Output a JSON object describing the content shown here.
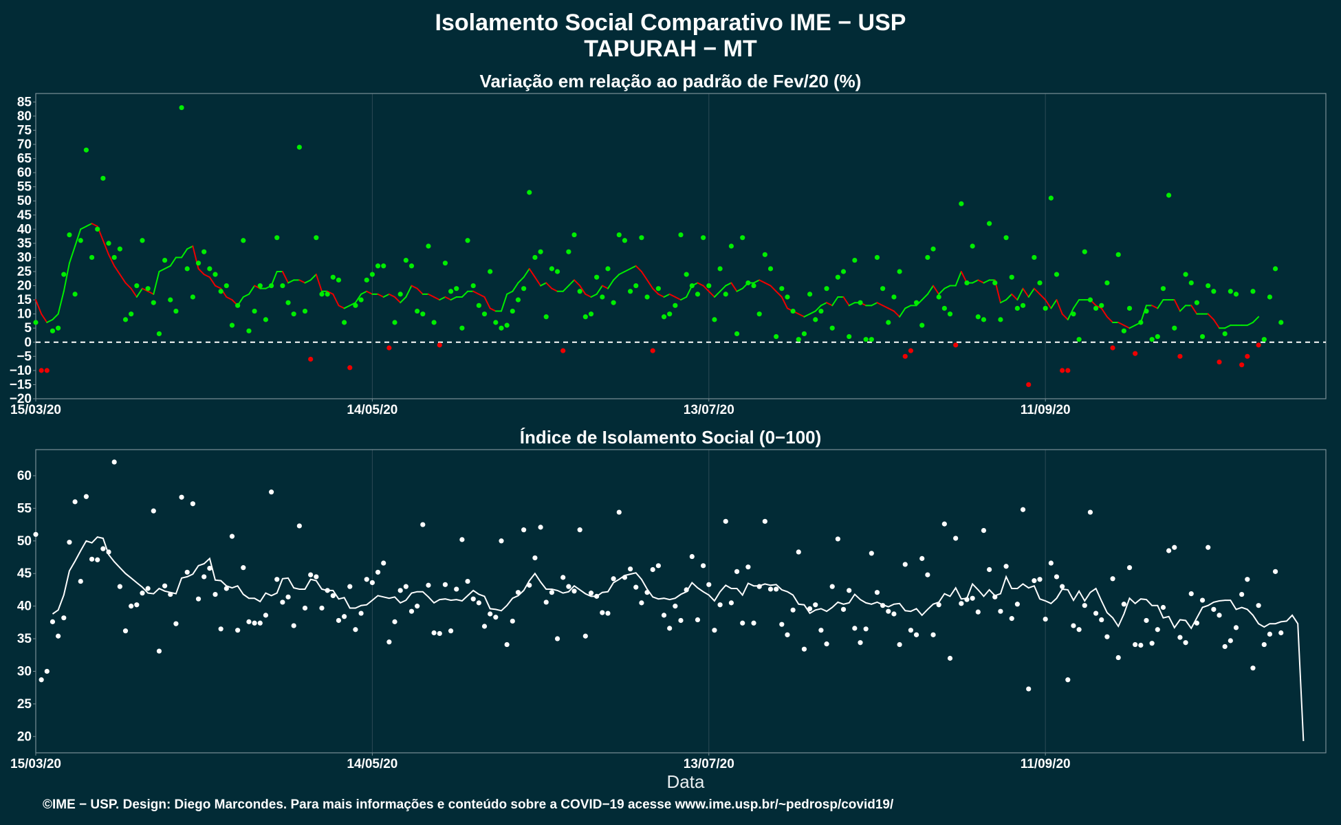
{
  "title": "Isolamento Social Comparativo IME − USP",
  "subtitle": "TAPURAH − MT",
  "xlabel": "Data",
  "caption": "©IME − USP. Design: Diego Marcondes. Para mais informações e conteúdo sobre a COVID−19 acesse www.ime.usp.br/~pedrosp/covid19/",
  "colors": {
    "background": "#022b36",
    "positive": "#00ee00",
    "negative": "#ee0000",
    "index": "#ffffff",
    "panel_border": "#7a8f96",
    "grid": "#2d4a55"
  },
  "chart_data": [
    {
      "type": "scatter",
      "title": "Variação em relação ao padrão de Fev/20 (%)",
      "x_start": "15/03/20",
      "x_ticks": [
        "15/03/20",
        "14/05/20",
        "13/07/20",
        "11/09/20"
      ],
      "x_tick_days": [
        0,
        60,
        120,
        180
      ],
      "xlim": [
        0,
        230
      ],
      "y_ticks": [
        -20,
        -15,
        -10,
        -5,
        0,
        5,
        10,
        15,
        20,
        25,
        30,
        35,
        40,
        45,
        50,
        55,
        60,
        65,
        70,
        75,
        80,
        85
      ],
      "ylim": [
        -20,
        88
      ],
      "reference_line": 0,
      "grid": "vertical at date ticks",
      "series": [
        {
          "kind": "points",
          "values": [
            7,
            -10,
            -10,
            4,
            5,
            24,
            38,
            17,
            36,
            68,
            30,
            40,
            58,
            35,
            30,
            33,
            8,
            10,
            20,
            36,
            19,
            14,
            3,
            29,
            15,
            11,
            83,
            26,
            16,
            28,
            32,
            26,
            24,
            18,
            20,
            6,
            13,
            36,
            4,
            11,
            20,
            8,
            20,
            37,
            20,
            14,
            10,
            69,
            11,
            -6,
            37,
            17,
            17,
            23,
            22,
            7,
            -9,
            13,
            15,
            22,
            24,
            27,
            27,
            -2,
            7,
            17,
            29,
            27,
            11,
            10,
            34,
            7,
            -1,
            28,
            18,
            19,
            5,
            36,
            20,
            13,
            10,
            25,
            7,
            5,
            6,
            11,
            15,
            19,
            53,
            30,
            32,
            9,
            26,
            25,
            -3,
            32,
            38,
            18,
            9,
            10,
            23,
            16,
            26,
            14,
            38,
            36,
            18,
            20,
            37,
            16,
            -3,
            19,
            9,
            10,
            13,
            38,
            24,
            20,
            17,
            37,
            20,
            8,
            26,
            17,
            34,
            3,
            37,
            21,
            20,
            10,
            31,
            26,
            2,
            19,
            16,
            11,
            1,
            3,
            17,
            8,
            11,
            19,
            5,
            23,
            25,
            2,
            29,
            14,
            1,
            1,
            30,
            19,
            7,
            16,
            25,
            -5,
            -3,
            14,
            6,
            30,
            33,
            16,
            12,
            10,
            -1,
            49,
            21,
            34,
            9,
            8,
            42,
            21,
            8,
            37,
            23,
            12,
            13,
            -15,
            30,
            21,
            12,
            51,
            24,
            -10,
            -10,
            10,
            1,
            32,
            15,
            12,
            13,
            21,
            -2,
            31,
            4,
            12,
            -4,
            7,
            11,
            1,
            2,
            19,
            52,
            5,
            -5,
            24,
            21,
            14,
            2,
            20,
            18,
            -7,
            3,
            18,
            17,
            -8,
            -5,
            18,
            -1,
            1,
            16,
            26,
            7
          ]
        },
        {
          "kind": "moving_average_line",
          "values": [
            15,
            10,
            7,
            8,
            10,
            18,
            28,
            34,
            40,
            41,
            42,
            41,
            36,
            31,
            27,
            24,
            21,
            19,
            16,
            19,
            18,
            17,
            25,
            26,
            27,
            30,
            30,
            33,
            34,
            26,
            24,
            23,
            20,
            19,
            16,
            15,
            13,
            16,
            17,
            20,
            19,
            19,
            20,
            25,
            25,
            21,
            22,
            22,
            21,
            22,
            24,
            18,
            18,
            17,
            13,
            12,
            13,
            14,
            17,
            18,
            17,
            17,
            16,
            17,
            16,
            14,
            16,
            20,
            19,
            17,
            17,
            16,
            15,
            16,
            15,
            16,
            16,
            18,
            18,
            17,
            16,
            12,
            11,
            11,
            17,
            18,
            21,
            23,
            26,
            23,
            20,
            21,
            19,
            18,
            18,
            20,
            22,
            20,
            17,
            16,
            17,
            20,
            19,
            22,
            24,
            25,
            26,
            27,
            25,
            22,
            19,
            17,
            16,
            17,
            16,
            15,
            16,
            20,
            21,
            20,
            18,
            16,
            18,
            20,
            21,
            18,
            19,
            21,
            21,
            22,
            21,
            20,
            18,
            16,
            12,
            11,
            10,
            9,
            10,
            11,
            13,
            14,
            13,
            16,
            16,
            13,
            14,
            14,
            13,
            13,
            14,
            13,
            12,
            11,
            9,
            12,
            13,
            13,
            15,
            17,
            20,
            17,
            19,
            20,
            20,
            25,
            21,
            21,
            22,
            21,
            22,
            22,
            14,
            15,
            17,
            15,
            19,
            16,
            19,
            17,
            15,
            12,
            15,
            10,
            8,
            12,
            15,
            15,
            15,
            13,
            12,
            9,
            7,
            7,
            6,
            5,
            6,
            7,
            13,
            13,
            12,
            15,
            15,
            15,
            11,
            13,
            13,
            10,
            10,
            10,
            8,
            5,
            5,
            6,
            6,
            6,
            6,
            7,
            9
          ]
        }
      ]
    },
    {
      "type": "scatter",
      "title": "Índice de Isolamento Social (0−100)",
      "x_start": "15/03/20",
      "x_ticks": [
        "15/03/20",
        "14/05/20",
        "13/07/20",
        "11/09/20"
      ],
      "x_tick_days": [
        0,
        60,
        120,
        180
      ],
      "xlim": [
        0,
        230
      ],
      "y_ticks": [
        20,
        25,
        30,
        35,
        40,
        45,
        50,
        55,
        60
      ],
      "ylim": [
        17.5,
        64
      ],
      "grid": "vertical at date ticks",
      "series": [
        {
          "kind": "points",
          "values": [
            51,
            28.7,
            30,
            37.6,
            35.4,
            38.2,
            49.8,
            56,
            43.8,
            56.8,
            47.2,
            47.1,
            48.8,
            48.3,
            62.1,
            43,
            36.2,
            40,
            40.2,
            42,
            42.7,
            54.6,
            33.1,
            43.1,
            41.8,
            37.3,
            56.7,
            45.2,
            55.7,
            41.1,
            44.5,
            45.8,
            41.8,
            36.5,
            42.7,
            50.7,
            36.3,
            45.9,
            37.6,
            37.4,
            37.4,
            38.6,
            57.5,
            44.1,
            40.6,
            41.4,
            37,
            52.3,
            39.7,
            44.8,
            44.5,
            39.7,
            42.4,
            41.6,
            37.8,
            38.4,
            43,
            36.4,
            38.9,
            44.1,
            43.6,
            45.2,
            46.6,
            34.5,
            37.6,
            42.4,
            43,
            39.2,
            40,
            52.5,
            43.2,
            35.9,
            35.8,
            43.3,
            36.2,
            42.6,
            50.2,
            43.8,
            41.1,
            40.5,
            36.9,
            38.8,
            38.3,
            50,
            34.1,
            37.7,
            42.1,
            51.7,
            43.2,
            47.4,
            52.1,
            40.6,
            42.1,
            35,
            44.4,
            43,
            42.3,
            51.7,
            35.4,
            42,
            41.5,
            39,
            38.9,
            44.2,
            54.4,
            44.4,
            45.7,
            42.9,
            40.5,
            42.1,
            45.6,
            46.2,
            38.6,
            36.6,
            40,
            37.8,
            42.5,
            47.6,
            37.9,
            46.2,
            43.3,
            36.3,
            40.2,
            53,
            40.5,
            45.3,
            37.4,
            46,
            37.4,
            43,
            53,
            42.6,
            42.6,
            37.2,
            35.6,
            39.4,
            48.3,
            33.4,
            39.6,
            40.2,
            36.3,
            34.2,
            43,
            50.3,
            39.5,
            42.4,
            36.6,
            34.4,
            36.5,
            48.1,
            42.1,
            40.1,
            39.2,
            38.8,
            34.1,
            46.4,
            36.3,
            35.6,
            47.3,
            44.8,
            35.6,
            40.2,
            52.6,
            32,
            50.4,
            40.4,
            41,
            41.2,
            39.1,
            51.6,
            45.6,
            41.4,
            39.2,
            46.1,
            38.1,
            40.3,
            54.8,
            27.3,
            43.9,
            44.1,
            38,
            46.6,
            44.5,
            43,
            28.7,
            37,
            36.4,
            40.1,
            54.4,
            38.9,
            37.9,
            35.3,
            44.2,
            32.1,
            40.3,
            45.9,
            34.1,
            34,
            37.8,
            34.3,
            36.4,
            39.8,
            48.5,
            49,
            35.2,
            34.4,
            41.9,
            37.4,
            40.9,
            49,
            39.5,
            38.6,
            33.8,
            34.7,
            36.7,
            41.8,
            44.1,
            30.5,
            40.1,
            34.1,
            35.7,
            45.3,
            35.9
          ]
        },
        {
          "kind": "moving_average_line",
          "x_start_day": 3,
          "values": [
            38.8,
            39.4,
            41.7,
            45.4,
            46.9,
            48.5,
            50,
            49.7,
            50.6,
            50.4,
            47.9,
            46.8,
            45.9,
            45,
            44.3,
            43.6,
            42.9,
            42,
            41.9,
            42.7,
            42.3,
            42.1,
            41.9,
            44.3,
            44.5,
            44.9,
            46.2,
            46.5,
            47.3,
            44,
            43.9,
            43.1,
            42.8,
            43.1,
            41.8,
            41.2,
            41.2,
            40.7,
            42,
            41.6,
            42,
            44.2,
            44.3,
            42.8,
            42.6,
            42.6,
            44.1,
            43.9,
            42.6,
            42.4,
            42.4,
            41.1,
            41.3,
            39.7,
            39.7,
            40.1,
            40.2,
            40.9,
            41.6,
            41.4,
            41.2,
            41.4,
            40.5,
            40.9,
            42,
            42.2,
            42.2,
            41.4,
            40.5,
            41,
            41.1,
            40.9,
            41,
            40.8,
            41.6,
            42.4,
            41.8,
            41.5,
            39.6,
            39.5,
            39.3,
            40.1,
            41.2,
            41.6,
            42.4,
            43.9,
            45,
            43.7,
            42.6,
            42.6,
            42.4,
            42,
            42.2,
            43.1,
            42.5,
            41.9,
            41.5,
            41.5,
            42.1,
            42.2,
            43.6,
            44.1,
            44.7,
            44.9,
            45.1,
            44.1,
            42.6,
            41.4,
            41.1,
            41.2,
            41,
            41.2,
            41.8,
            42.2,
            43.6,
            42.8,
            42.2,
            41.7,
            40.8,
            42.2,
            43.2,
            42.7,
            42.7,
            41.7,
            43.5,
            43.1,
            43.1,
            43.4,
            43.2,
            43.3,
            42.5,
            42.2,
            41.7,
            40.3,
            40.2,
            38.9,
            39.4,
            39.6,
            39.2,
            39.8,
            40.6,
            40.3,
            40.5,
            41.8,
            41,
            40.5,
            40.3,
            40.6,
            40.2,
            39.9,
            40.3,
            40.4,
            39.3,
            39.2,
            39.6,
            38.6,
            39.5,
            40.3,
            40.6,
            41.9,
            41.5,
            42.8,
            41.1,
            41.2,
            43.4,
            42.5,
            41.5,
            42.5,
            41.6,
            41.9,
            44.5,
            42.7,
            42.7,
            43.4,
            42.8,
            43.1,
            41.1,
            40.8,
            40.4,
            41.2,
            42.6,
            42.5,
            40.9,
            42.3,
            40.8,
            42.1,
            42.7,
            40.8,
            39,
            38.2,
            36.9,
            38.8,
            41.2,
            40.4,
            41.1,
            41,
            40.1,
            40.1,
            38.2,
            38.4,
            36.7,
            37.9,
            37.8,
            36.6,
            38.2,
            39.8,
            40.1,
            40.6,
            40.8,
            40.9,
            40.9,
            39.5,
            39.8,
            39.5,
            38.6,
            37.3,
            36.8,
            37.3,
            37.3,
            37.6,
            37.7,
            38.6,
            37.3,
            19.3
          ]
        }
      ]
    }
  ]
}
